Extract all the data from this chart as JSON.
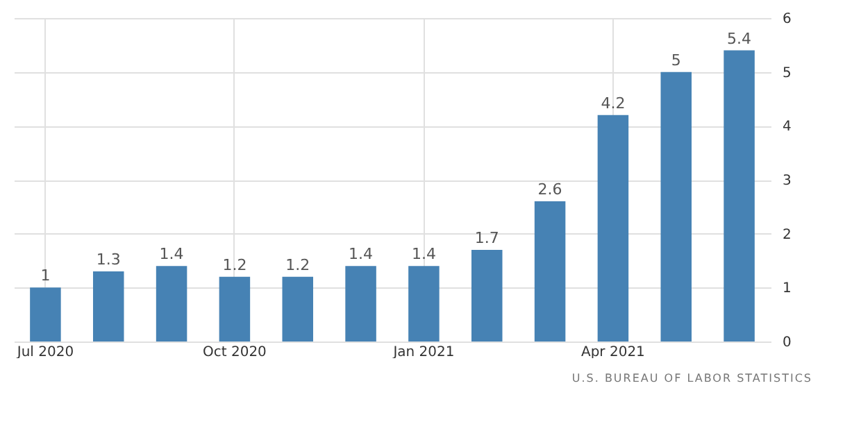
{
  "chart_data": {
    "type": "bar",
    "categories": [
      "Jul 2020",
      null,
      null,
      "Oct 2020",
      null,
      null,
      "Jan 2021",
      null,
      null,
      "Apr 2021",
      null,
      null
    ],
    "values": [
      1,
      1.3,
      1.4,
      1.2,
      1.2,
      1.4,
      1.4,
      1.7,
      2.6,
      4.2,
      5,
      5.4
    ],
    "color": "#4682b4",
    "ylim": [
      0,
      6
    ],
    "yticks": [
      0,
      1,
      2,
      3,
      4,
      5,
      6
    ],
    "grid": true,
    "data_labels": true,
    "annotations": [
      "U.S. BUREAU OF LABOR STATISTICS"
    ]
  }
}
